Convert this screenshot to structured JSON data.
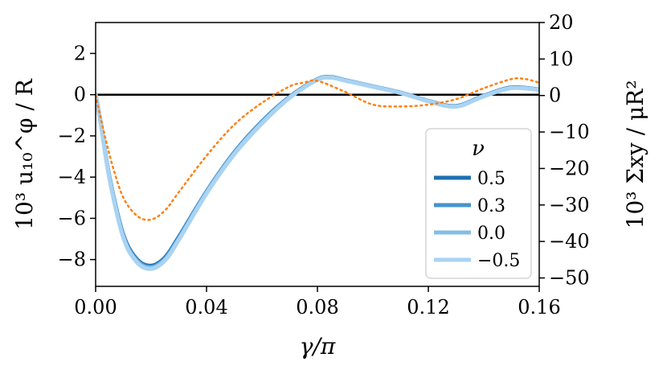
{
  "chart_data": {
    "type": "line",
    "xlabel": "γ/π",
    "ylabel_left": "10³ u₁₀^φ / R",
    "ylabel_right": "10³ Σxy / μR²",
    "xlim": [
      0.0,
      0.16
    ],
    "ylim_left": [
      -9.3,
      3.5
    ],
    "ylim_right": [
      -52.3,
      20.0
    ],
    "x_ticks": [
      0.0,
      0.04,
      0.08,
      0.12,
      0.16
    ],
    "x_tick_labels": [
      "0.00",
      "0.04",
      "0.08",
      "0.12",
      "0.16"
    ],
    "y_left_ticks": [
      2,
      0,
      -2,
      -4,
      -6,
      -8
    ],
    "y_left_tick_labels": [
      "2",
      "0",
      "−2",
      "−4",
      "−6",
      "−8"
    ],
    "y_right_ticks": [
      20,
      10,
      0,
      -10,
      -20,
      -30,
      -40,
      -50
    ],
    "y_right_tick_labels": [
      "20",
      "10",
      "0",
      "−10",
      "−20",
      "−30",
      "−40",
      "−50"
    ],
    "grid": false,
    "zero_line": true,
    "legend": {
      "title": "ν",
      "placement": "lower-right",
      "entries": [
        "0.5",
        "0.3",
        "0.0",
        "−0.5"
      ]
    },
    "series": [
      {
        "name": "0.5",
        "axis": "left",
        "color": "#1f6fb0",
        "x": [
          0.0,
          0.002,
          0.005,
          0.01,
          0.015,
          0.02,
          0.025,
          0.03,
          0.04,
          0.05,
          0.06,
          0.07,
          0.08,
          0.085,
          0.09,
          0.1,
          0.11,
          0.12,
          0.13,
          0.14,
          0.15,
          0.16
        ],
        "y": [
          0.0,
          -1.5,
          -4.0,
          -6.8,
          -8.0,
          -8.3,
          -7.9,
          -6.9,
          -4.7,
          -2.8,
          -1.3,
          -0.1,
          0.75,
          0.85,
          0.7,
          0.4,
          0.1,
          -0.3,
          -0.55,
          -0.05,
          0.35,
          0.25
        ]
      },
      {
        "name": "0.3",
        "axis": "left",
        "color": "#4593cd",
        "x": [
          0.0,
          0.002,
          0.005,
          0.01,
          0.015,
          0.02,
          0.025,
          0.03,
          0.04,
          0.05,
          0.06,
          0.07,
          0.08,
          0.085,
          0.09,
          0.1,
          0.11,
          0.12,
          0.13,
          0.14,
          0.15,
          0.16
        ],
        "y": [
          0.0,
          -1.5,
          -4.0,
          -6.85,
          -8.05,
          -8.35,
          -7.95,
          -6.95,
          -4.72,
          -2.82,
          -1.32,
          -0.12,
          0.74,
          0.84,
          0.7,
          0.4,
          0.1,
          -0.3,
          -0.56,
          -0.06,
          0.34,
          0.25
        ]
      },
      {
        "name": "0.0",
        "axis": "left",
        "color": "#84bde6",
        "x": [
          0.0,
          0.002,
          0.005,
          0.01,
          0.015,
          0.02,
          0.025,
          0.03,
          0.04,
          0.05,
          0.06,
          0.07,
          0.08,
          0.085,
          0.09,
          0.1,
          0.11,
          0.12,
          0.13,
          0.14,
          0.15,
          0.16
        ],
        "y": [
          0.0,
          -1.5,
          -4.05,
          -6.9,
          -8.1,
          -8.4,
          -8.0,
          -7.0,
          -4.75,
          -2.85,
          -1.35,
          -0.13,
          0.73,
          0.83,
          0.69,
          0.39,
          0.09,
          -0.31,
          -0.57,
          -0.07,
          0.33,
          0.24
        ]
      },
      {
        "name": "−0.5",
        "axis": "left",
        "color": "#aad3f2",
        "x": [
          0.0,
          0.002,
          0.005,
          0.01,
          0.015,
          0.02,
          0.025,
          0.03,
          0.04,
          0.05,
          0.06,
          0.07,
          0.08,
          0.085,
          0.09,
          0.1,
          0.11,
          0.12,
          0.13,
          0.14,
          0.15,
          0.16
        ],
        "y": [
          0.0,
          -1.55,
          -4.1,
          -6.95,
          -8.15,
          -8.45,
          -8.05,
          -7.05,
          -4.8,
          -2.9,
          -1.4,
          -0.15,
          0.72,
          0.82,
          0.68,
          0.38,
          0.08,
          -0.32,
          -0.58,
          -0.08,
          0.32,
          0.23
        ]
      },
      {
        "axis": "right",
        "color": "#ff7f0e",
        "style": "dotted",
        "x": [
          0.0,
          0.003,
          0.006,
          0.01,
          0.015,
          0.02,
          0.025,
          0.03,
          0.04,
          0.05,
          0.06,
          0.07,
          0.075,
          0.08,
          0.09,
          0.1,
          0.11,
          0.12,
          0.13,
          0.14,
          0.15,
          0.155,
          0.16
        ],
        "y": [
          0.0,
          -10.0,
          -19.0,
          -28.0,
          -33.0,
          -34.0,
          -31.5,
          -26.5,
          -16.5,
          -8.0,
          -2.0,
          2.5,
          3.5,
          4.0,
          1.0,
          -2.5,
          -3.0,
          -2.5,
          -1.0,
          2.0,
          4.5,
          4.5,
          3.5
        ]
      }
    ]
  }
}
